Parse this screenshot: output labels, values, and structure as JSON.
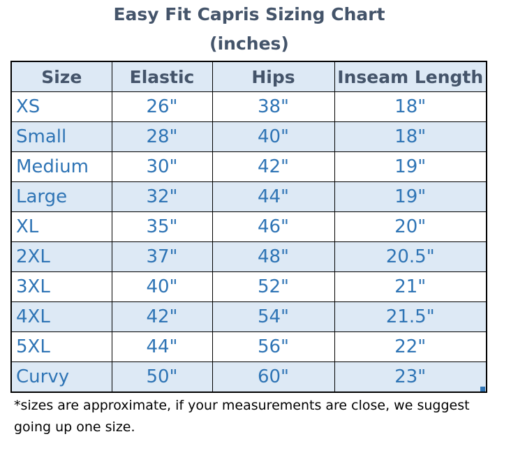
{
  "title": {
    "line1": "Easy Fit Capris Sizing Chart",
    "line2": "(inches)"
  },
  "table": {
    "headers": [
      "Size",
      "Elastic",
      "Hips",
      "Inseam Length"
    ],
    "rows": [
      [
        "XS",
        "26\"",
        "38\"",
        "18\""
      ],
      [
        "Small",
        "28\"",
        "40\"",
        "18\""
      ],
      [
        "Medium",
        "30\"",
        "42\"",
        "19\""
      ],
      [
        "Large",
        "32\"",
        "44\"",
        "19\""
      ],
      [
        "XL",
        "35\"",
        "46\"",
        "20\""
      ],
      [
        "2XL",
        "37\"",
        "48\"",
        "20.5\""
      ],
      [
        "3XL",
        "40\"",
        "52\"",
        "21\""
      ],
      [
        "4XL",
        "42\"",
        "54\"",
        "21.5\""
      ],
      [
        "5XL",
        "44\"",
        "56\"",
        "22\""
      ],
      [
        "Curvy",
        "50\"",
        "60\"",
        "23\""
      ]
    ]
  },
  "note": "*sizes are approximate, if your measurements are close, we suggest going up one size.",
  "colors": {
    "title": "#44546a",
    "cell_text": "#2e74b5",
    "stripe": "#dde9f5"
  }
}
